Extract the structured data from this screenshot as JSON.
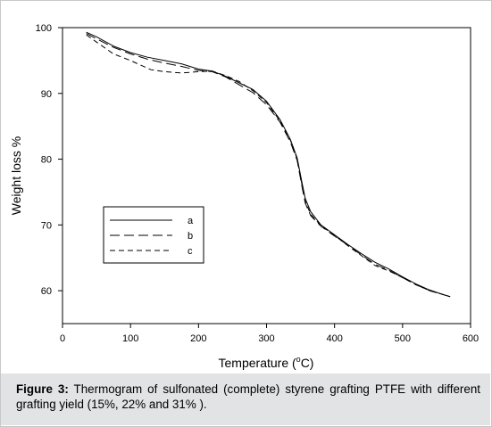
{
  "chart_data": {
    "type": "line",
    "xlabel_main": "Temperature (",
    "xlabel_sup": "o",
    "xlabel_end": "C)",
    "ylabel": "Weight loss %",
    "xlim": [
      0,
      600
    ],
    "ylim": [
      55,
      100
    ],
    "x_ticks": [
      0,
      100,
      200,
      300,
      400,
      500,
      600
    ],
    "y_ticks": [
      60,
      70,
      80,
      90,
      100
    ],
    "grid": false,
    "legend_position": "lower-left",
    "series": [
      {
        "name": "a",
        "dash": "solid",
        "points": [
          [
            35,
            99.3
          ],
          [
            50,
            98.6
          ],
          [
            75,
            97.2
          ],
          [
            100,
            96.2
          ],
          [
            125,
            95.5
          ],
          [
            150,
            95.0
          ],
          [
            175,
            94.5
          ],
          [
            200,
            93.7
          ],
          [
            220,
            93.4
          ],
          [
            240,
            92.6
          ],
          [
            260,
            91.6
          ],
          [
            280,
            90.6
          ],
          [
            300,
            88.8
          ],
          [
            320,
            86.0
          ],
          [
            335,
            83.0
          ],
          [
            345,
            80.2
          ],
          [
            352,
            76.5
          ],
          [
            357,
            74.0
          ],
          [
            365,
            72.0
          ],
          [
            380,
            70.0
          ],
          [
            400,
            68.5
          ],
          [
            420,
            67.0
          ],
          [
            440,
            65.6
          ],
          [
            460,
            64.3
          ],
          [
            480,
            63.3
          ],
          [
            500,
            62.1
          ],
          [
            520,
            61.0
          ],
          [
            540,
            60.1
          ],
          [
            560,
            59.4
          ],
          [
            570,
            59.1
          ]
        ]
      },
      {
        "name": "b",
        "dash": "long-dash",
        "points": [
          [
            35,
            99.1
          ],
          [
            50,
            98.3
          ],
          [
            75,
            97.0
          ],
          [
            100,
            96.0
          ],
          [
            125,
            95.2
          ],
          [
            150,
            94.6
          ],
          [
            175,
            94.1
          ],
          [
            200,
            93.5
          ],
          [
            220,
            93.3
          ],
          [
            240,
            92.5
          ],
          [
            260,
            91.3
          ],
          [
            280,
            90.1
          ],
          [
            300,
            88.3
          ],
          [
            320,
            85.6
          ],
          [
            335,
            82.6
          ],
          [
            345,
            79.8
          ],
          [
            352,
            75.9
          ],
          [
            357,
            73.3
          ],
          [
            365,
            71.4
          ],
          [
            380,
            69.8
          ],
          [
            400,
            68.3
          ],
          [
            420,
            66.9
          ],
          [
            440,
            65.4
          ],
          [
            460,
            64.0
          ],
          [
            480,
            63.1
          ],
          [
            500,
            62.0
          ],
          [
            520,
            60.9
          ],
          [
            540,
            60.0
          ],
          [
            560,
            59.4
          ],
          [
            570,
            59.1
          ]
        ]
      },
      {
        "name": "c",
        "dash": "short-dash",
        "points": [
          [
            35,
            98.9
          ],
          [
            50,
            97.8
          ],
          [
            75,
            96.0
          ],
          [
            100,
            95.0
          ],
          [
            115,
            94.3
          ],
          [
            130,
            93.6
          ],
          [
            150,
            93.3
          ],
          [
            175,
            93.1
          ],
          [
            200,
            93.3
          ],
          [
            220,
            93.4
          ],
          [
            240,
            92.7
          ],
          [
            260,
            91.8
          ],
          [
            280,
            90.4
          ],
          [
            300,
            88.6
          ],
          [
            320,
            85.8
          ],
          [
            335,
            82.9
          ],
          [
            345,
            80.0
          ],
          [
            352,
            76.2
          ],
          [
            357,
            73.6
          ],
          [
            365,
            71.6
          ],
          [
            380,
            69.9
          ],
          [
            400,
            68.4
          ],
          [
            420,
            66.8
          ],
          [
            440,
            65.3
          ],
          [
            460,
            63.8
          ],
          [
            480,
            63.0
          ],
          [
            500,
            62.0
          ],
          [
            520,
            60.9
          ],
          [
            540,
            60.0
          ],
          [
            560,
            59.4
          ],
          [
            570,
            59.1
          ]
        ]
      }
    ]
  },
  "caption": {
    "label": "Figure 3:",
    "text": " Thermogram of sulfonated (complete) styrene grafting PTFE with different grafting yield (15%, 22% and 31% )."
  }
}
